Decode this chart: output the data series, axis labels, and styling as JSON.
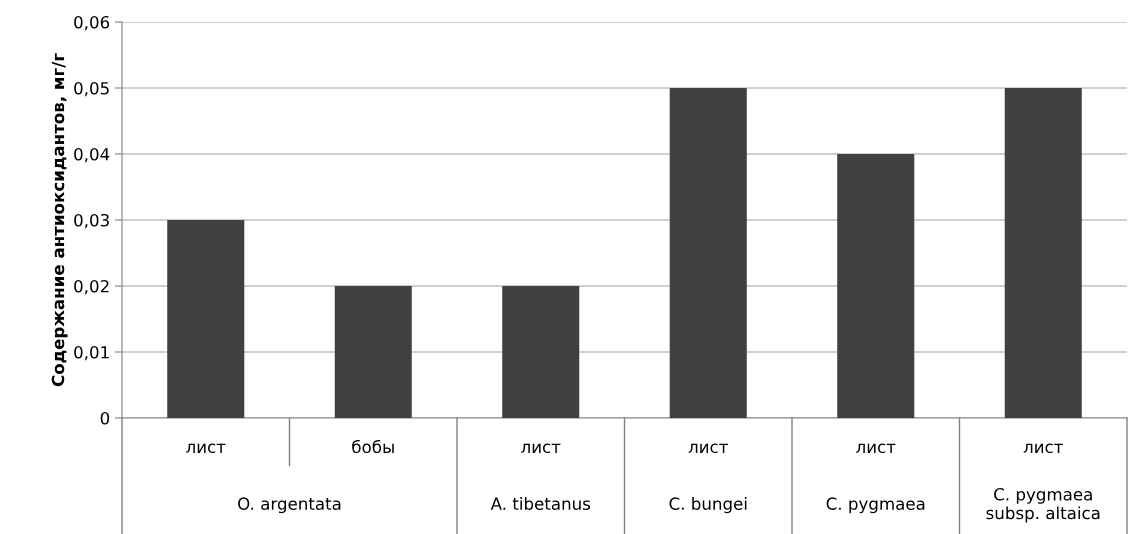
{
  "chart_data": {
    "type": "bar",
    "ylabel": "Содержание антиоксидантов, мг/г",
    "categories": [
      "лист",
      "бобы",
      "лист",
      "лист",
      "лист",
      "лист"
    ],
    "values": [
      0.03,
      0.02,
      0.02,
      0.05,
      0.04,
      0.05
    ],
    "color": "#404040",
    "annotations": [
      "O. argentata",
      "A. tibetanus",
      "C. bungei",
      "C. pygmaea",
      "C. pygmaea\nsubsp. altaica"
    ],
    "ylim": [
      0,
      0.06
    ],
    "yticks": [
      0,
      {
        "value": 0.01,
        "label": "0,01"
      },
      {
        "value": 0.02,
        "label": "0,02"
      },
      {
        "value": 0.03,
        "label": "0,03"
      },
      {
        "value": 0.04,
        "label": "0,04"
      },
      {
        "value": 0.05,
        "label": "0,05"
      },
      {
        "value": 0.06,
        "label": "0,06"
      }
    ],
    "grid": "y"
  }
}
